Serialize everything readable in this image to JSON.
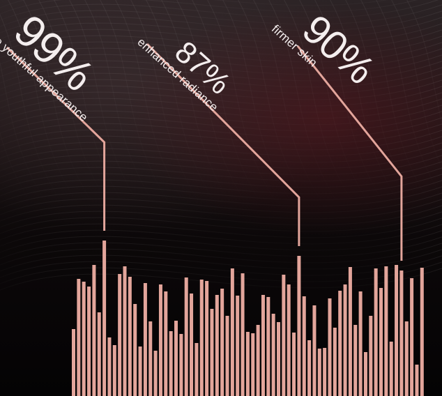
{
  "chart_data": {
    "type": "bar",
    "color": "#e3a59b",
    "values": [
      96,
      168,
      164,
      157,
      188,
      120,
      223,
      84,
      73,
      175,
      186,
      171,
      132,
      71,
      162,
      107,
      65,
      160,
      150,
      93,
      108,
      89,
      170,
      147,
      76,
      167,
      165,
      125,
      145,
      154,
      115,
      183,
      144,
      176,
      92,
      90,
      102,
      145,
      142,
      118,
      106,
      174,
      160,
      91,
      201,
      143,
      80,
      130,
      68,
      69,
      140,
      98,
      151,
      160,
      185,
      102,
      150,
      63,
      115,
      183,
      155,
      186,
      78,
      188,
      180,
      107,
      169,
      45,
      184
    ],
    "highlights": [
      {
        "index": 6,
        "value": "99%",
        "label": "more youthful appearance"
      },
      {
        "index": 44,
        "value": "87%",
        "label": "enhanced radiance"
      },
      {
        "index": 64,
        "value": "90%",
        "label": "firmer skin"
      }
    ]
  }
}
